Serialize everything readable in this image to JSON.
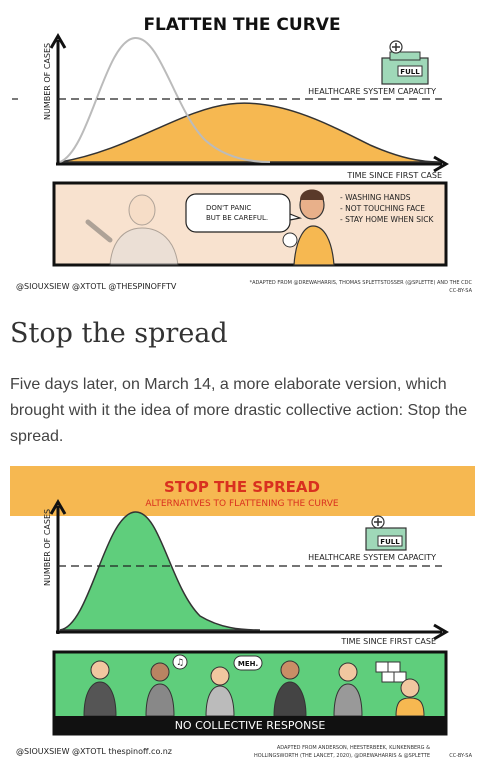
{
  "figure1": {
    "title": "FLATTEN THE CURVE",
    "ylabel": "NUMBER OF CASES",
    "xlabel": "TIME SINCE FIRST CASE",
    "capacity_label": "HEALTHCARE SYSTEM CAPACITY",
    "hospital_sign": "FULL",
    "speech": [
      "DON'T PANIC",
      "BUT BE CAREFUL."
    ],
    "tips": [
      "- WASHING HANDS",
      "- NOT TOUCHING FACE",
      "- STAY HOME WHEN SICK"
    ],
    "credits_left": "@SIOUXSIEW @XTOTL @THESPINOFFTV",
    "credits_right": "*ADAPTED FROM @DREWAHARRIS, THOMAS SPLETTSTOSSER (@SPLETTE) AND THE CDC",
    "license": "CC-BY-SA",
    "colors": {
      "orange": "#f6b851",
      "panel_bg": "#f8e2cf",
      "grey": "#bbbbbb"
    }
  },
  "article": {
    "heading": "Stop the spread",
    "paragraph": "Five days later, on March 14, a more elaborate version, which brought with it the idea of more drastic collective action: Stop the spread."
  },
  "figure2": {
    "banner_title": "STOP THE SPREAD",
    "banner_subtitle": "ALTERNATIVES TO FLATTENING THE CURVE",
    "ylabel": "NUMBER OF CASES",
    "xlabel": "TIME SINCE FIRST CASE",
    "capacity_label": "HEALTHCARE SYSTEM CAPACITY",
    "hospital_sign": "FULL",
    "meh": "MEH.",
    "caption": "NO COLLECTIVE RESPONSE",
    "credits_left": "@SIOUXSIEW @XTOTL thespinoff.co.nz",
    "credits_right_1": "ADAPTED FROM ANDERSON, HEESTERBEEK, KLINKENBERG &",
    "credits_right_2": "HOLLINGSWORTH (THE LANCET, 2020), @DREWAHARRIS & @SPLETTE",
    "license": "CC-BY-SA",
    "colors": {
      "banner": "#f6b851",
      "title_red": "#d9301f",
      "green": "#5fce7c",
      "panel_green": "#5fce7c"
    }
  },
  "icons": [
    "hospital-icon",
    "person-icon",
    "music-note-icon",
    "toilet-paper-icon"
  ]
}
